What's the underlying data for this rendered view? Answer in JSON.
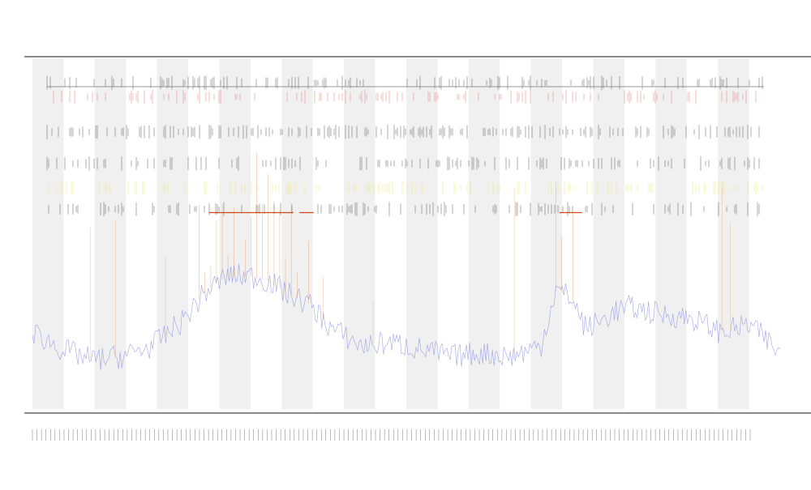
{
  "chart_data": {
    "type": "line",
    "title": "",
    "subtitle_1": "",
    "subtitle_2": "",
    "xlabel": "",
    "ylabel": "",
    "legend": {
      "position": "top-left",
      "entries": []
    },
    "grid": false,
    "shaded_bands": {
      "color": "#f0f0f0",
      "count": 12
    },
    "colors": {
      "low_signal": "#8a8fe0",
      "high_signal": "#d9782a",
      "event_red": "#e05050",
      "event_yellow": "#e3df3a",
      "event_dark": "#222222",
      "segment_line": "#d04a10"
    },
    "x": {
      "range": [
        0,
        100
      ],
      "tick_count": 160
    },
    "y": {
      "range": [
        0,
        100
      ]
    },
    "series": [
      {
        "sample_x": [
          0,
          4,
          8,
          12,
          16,
          20,
          23,
          26,
          29,
          32,
          34,
          37,
          40,
          44,
          48,
          52,
          56,
          60,
          64,
          68,
          70,
          72,
          74,
          76,
          78,
          80,
          84,
          88,
          92,
          96,
          100
        ],
        "sample_y": [
          22,
          17,
          14,
          15,
          18,
          25,
          33,
          38,
          38,
          36,
          33,
          30,
          23,
          18,
          19,
          17,
          15,
          16,
          15,
          18,
          34,
          32,
          23,
          25,
          28,
          29,
          27,
          26,
          22,
          24,
          16
        ],
        "threshold": 30
      }
    ],
    "event_rows": [
      {
        "color": "#222222",
        "y": 93,
        "density": 0.55
      },
      {
        "color": "#e05050",
        "y": 89,
        "density": 0.45
      },
      {
        "color": "#222222",
        "y": 79,
        "density": 0.8
      },
      {
        "color": "#222222",
        "y": 70,
        "density": 0.55
      },
      {
        "color": "#e3df3a",
        "y": 63,
        "density": 0.55
      },
      {
        "color": "#222222",
        "y": 57,
        "density": 0.5
      }
    ],
    "segments": [
      {
        "x0": 23.6,
        "x1": 34.9,
        "y": 56
      },
      {
        "x0": 35.7,
        "x1": 37.6,
        "y": 56
      },
      {
        "x0": 70.5,
        "x1": 73.5,
        "y": 56
      }
    ]
  }
}
